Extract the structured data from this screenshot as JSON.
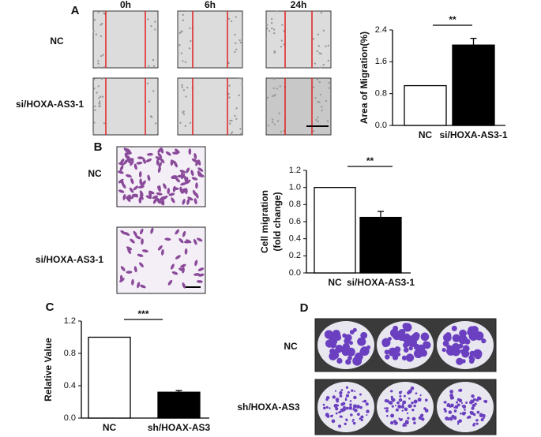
{
  "panels": {
    "a": {
      "letter": "A",
      "columns": [
        "0h",
        "6h",
        "24h"
      ],
      "rows": [
        "NC",
        "si/HOXA-AS3-1"
      ]
    },
    "b": {
      "letter": "B",
      "rows": [
        "NC",
        "si/HOXA-AS3-1"
      ]
    },
    "c": {
      "letter": "C"
    },
    "d": {
      "letter": "D",
      "rows": [
        "NC",
        "sh/HOXA-AS3"
      ]
    }
  },
  "chart_data": [
    {
      "type": "bar",
      "ylabel": [
        "Area of Migration(%)"
      ],
      "categories": [
        "NC",
        "si/HOXA-AS3-1"
      ],
      "values": [
        1.0,
        2.02
      ],
      "errors": [
        0,
        0.17
      ],
      "colors": [
        "#ffffff",
        "#000000"
      ],
      "ylim": [
        0,
        2.4
      ],
      "yticks": [
        {
          "value": 0,
          "label": "0.0"
        },
        0.8,
        1.6,
        2.4
      ],
      "annotation": "**"
    },
    {
      "type": "bar",
      "ylabel": [
        "Cell migration",
        "(fold change)"
      ],
      "categories": [
        "NC",
        "si/HOXA-AS3-1"
      ],
      "values": [
        1.0,
        0.65
      ],
      "errors": [
        0,
        0.07
      ],
      "colors": [
        "#ffffff",
        "#000000"
      ],
      "ylim": [
        0,
        1.2
      ],
      "yticks": [
        {
          "value": 0,
          "label": "0.0"
        },
        0.2,
        0.4,
        0.6,
        0.8,
        {
          "value": 1,
          "label": "1.0"
        },
        1.2
      ],
      "annotation": "**"
    },
    {
      "type": "bar",
      "ylabel": [
        "Relative Value"
      ],
      "categories": [
        "NC",
        "sh/HOAX-AS3"
      ],
      "values": [
        1.0,
        0.32
      ],
      "errors": [
        0,
        0.02
      ],
      "colors": [
        "#ffffff",
        "#000000"
      ],
      "ylim": [
        0,
        1.2
      ],
      "yticks": [
        {
          "value": 0,
          "label": "0.0"
        },
        0.4,
        0.8,
        1.2
      ],
      "annotation": "***"
    }
  ]
}
